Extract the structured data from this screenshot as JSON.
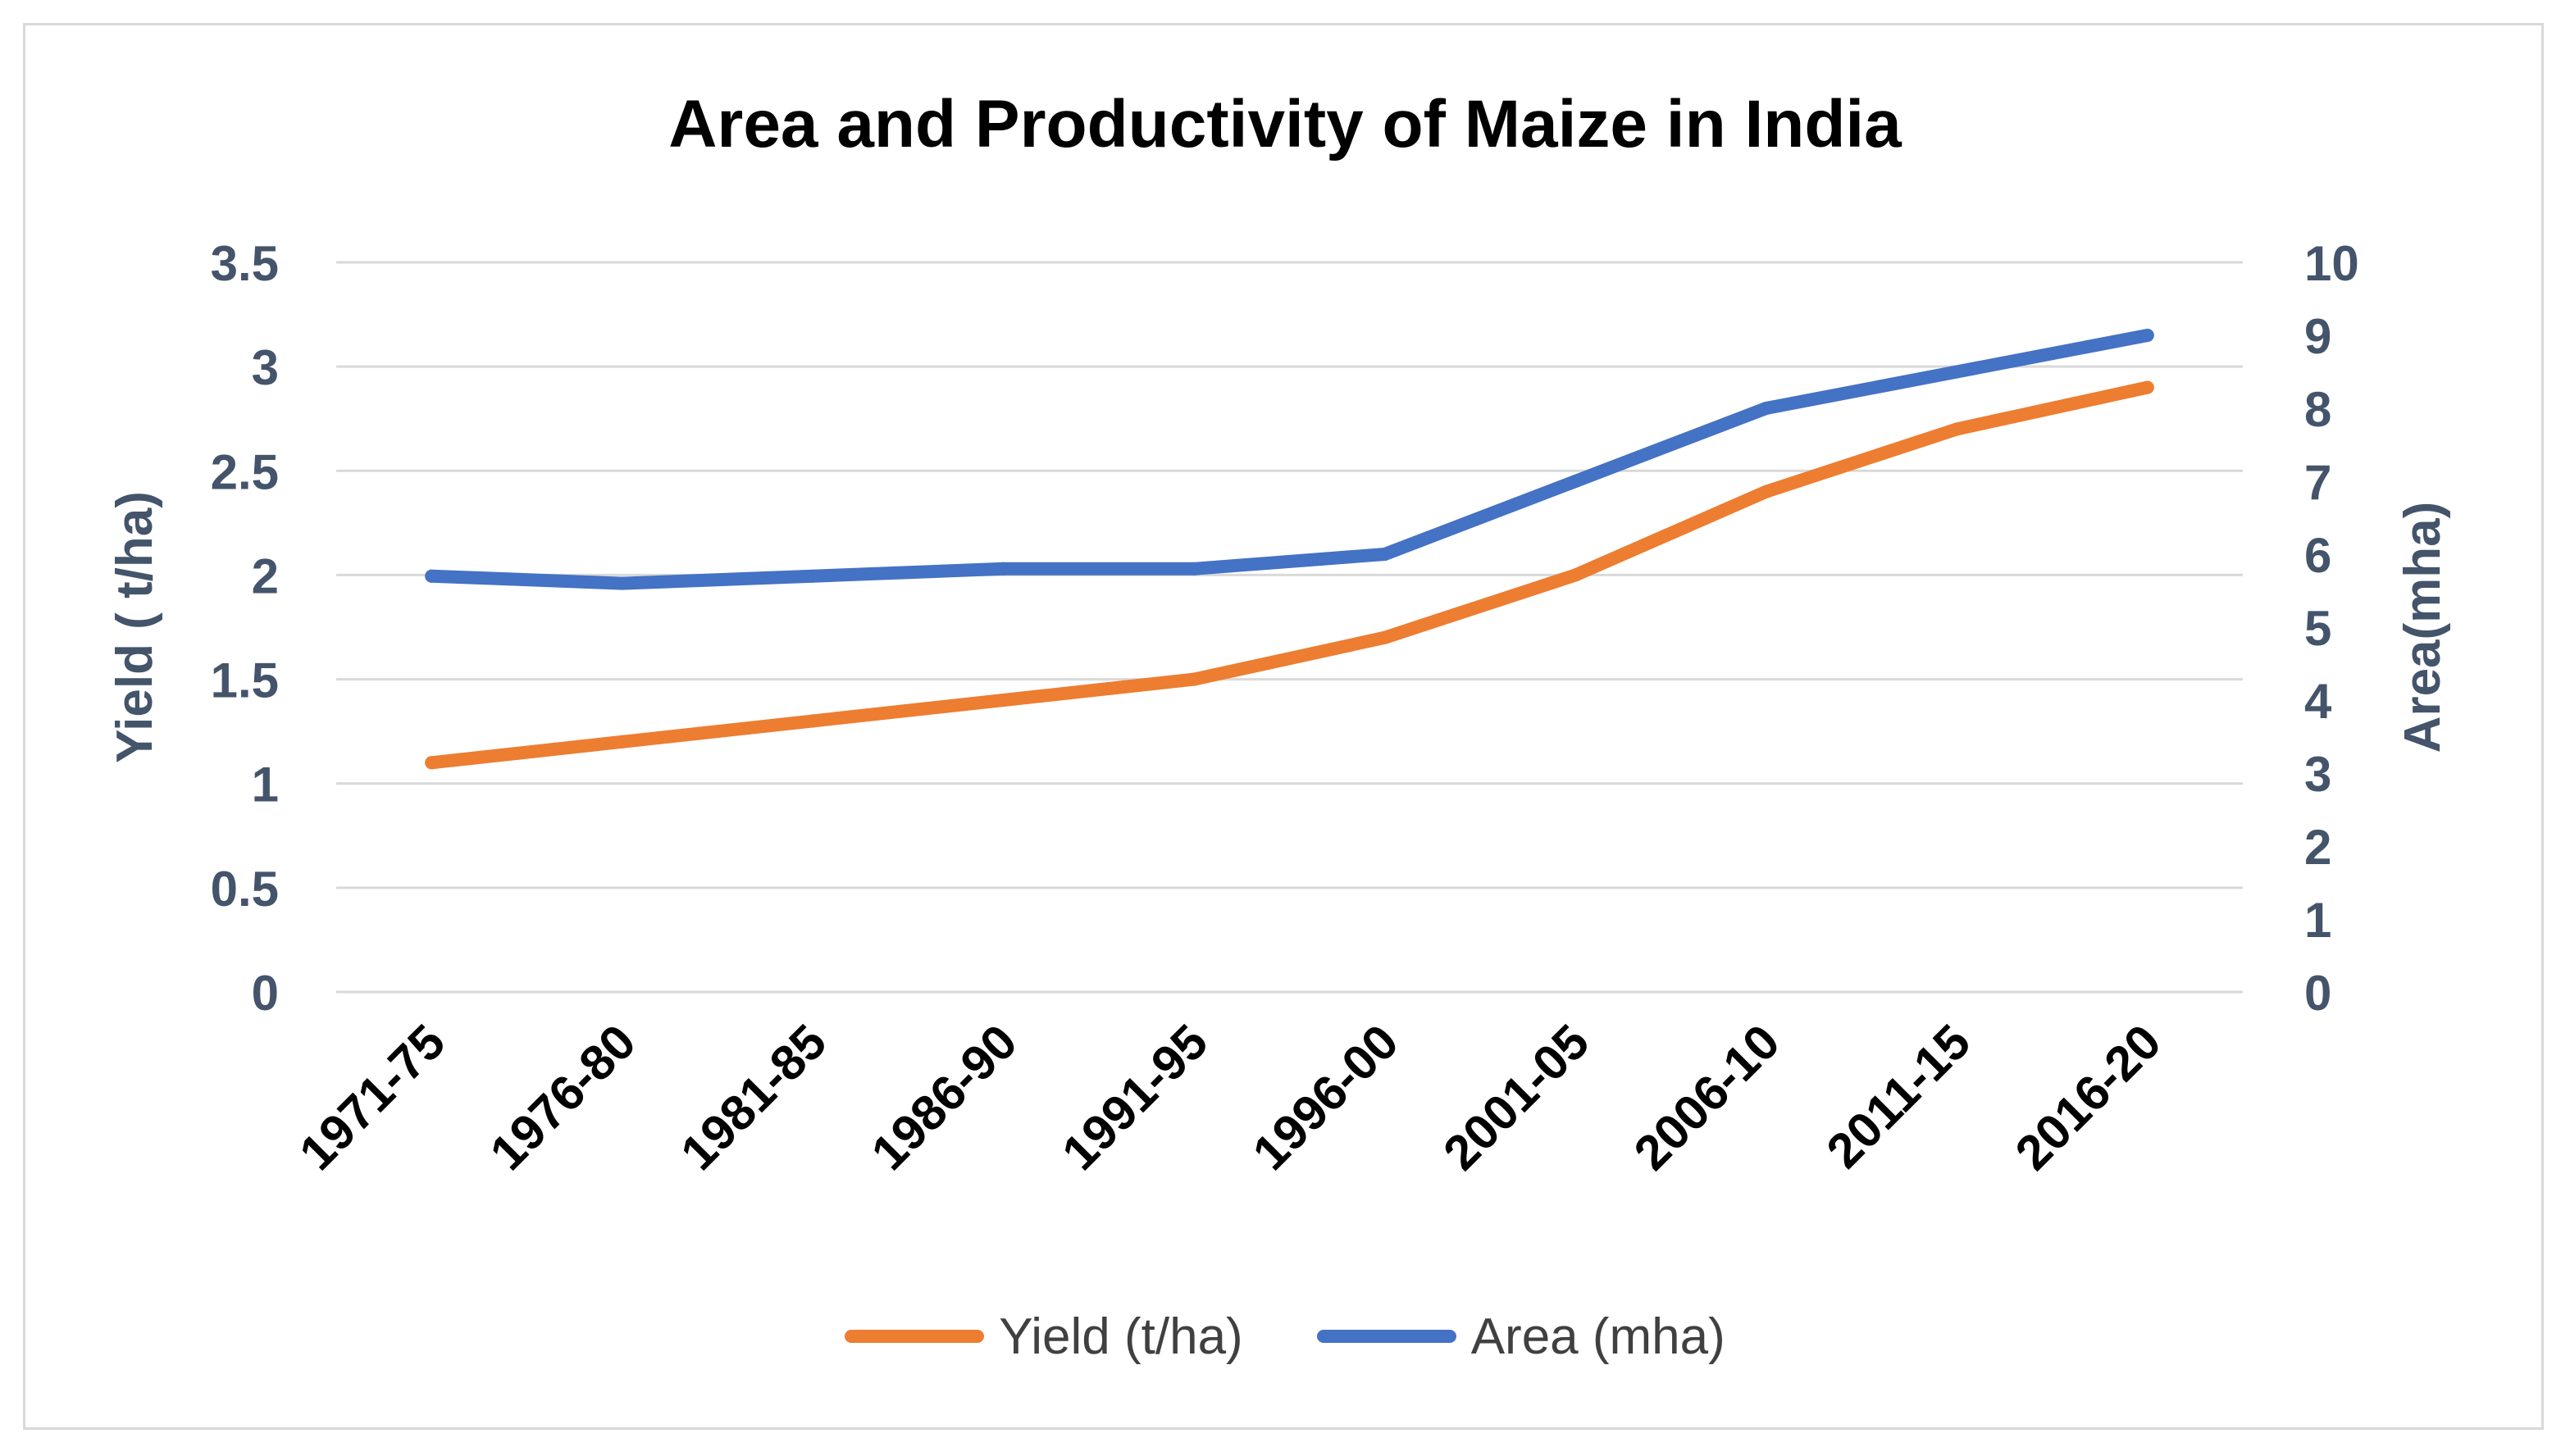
{
  "chart_data": {
    "type": "line",
    "title": "Area and Productivity of Maize in India",
    "categories": [
      "1971-75",
      "1976-80",
      "1981-85",
      "1986-90",
      "1991-95",
      "1996-00",
      "2001-05",
      "2006-10",
      "2011-15",
      "2016-20"
    ],
    "series": [
      {
        "name": "Yield (t/ha)",
        "axis": "left",
        "color": "#ED7D31",
        "values": [
          1.1,
          1.2,
          1.3,
          1.4,
          1.5,
          1.7,
          2.0,
          2.4,
          2.7,
          2.9
        ]
      },
      {
        "name": "Area (mha)",
        "axis": "right",
        "color": "#4472C4",
        "values": [
          5.7,
          5.6,
          5.7,
          5.8,
          5.8,
          6.0,
          7.0,
          8.0,
          8.5,
          9.0
        ]
      }
    ],
    "y_left": {
      "label": "Yield ( t/ha)",
      "ylim": [
        0,
        3.5
      ],
      "ticks": [
        "0",
        "0.5",
        "1",
        "1.5",
        "2",
        "2.5",
        "3",
        "3.5"
      ]
    },
    "y_right": {
      "label": "Area(mha)",
      "ylim": [
        0,
        10
      ],
      "ticks": [
        "0",
        "1",
        "2",
        "3",
        "4",
        "5",
        "6",
        "7",
        "8",
        "9",
        "10"
      ]
    },
    "grid": true,
    "legend": "bottom-center",
    "axis_color": "#44546A",
    "grid_color": "#D9D9D9"
  }
}
